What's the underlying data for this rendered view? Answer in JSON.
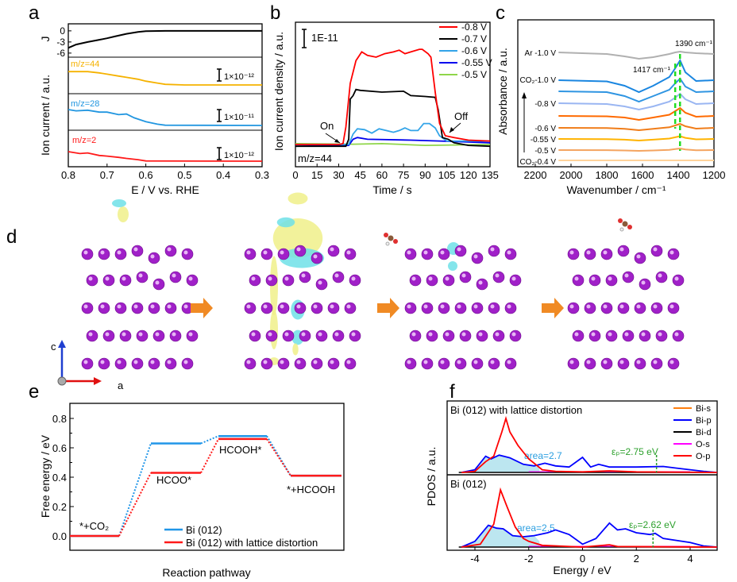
{
  "panel_labels": {
    "a": "a",
    "b": "b",
    "c": "c",
    "d": "d",
    "e": "e",
    "f": "f"
  },
  "structure": {
    "axis_c": "c",
    "axis_a": "a",
    "colors": {
      "atom": "#a020c8",
      "arrow": "#f08a24",
      "positive": "#f0f08a",
      "negative": "#6fe0e8"
    }
  },
  "chart_data": [
    {
      "panel": "a",
      "type": "line",
      "xlabel": "E / V vs. RHE",
      "ylabel": "Ion current / a.u.",
      "xlim": [
        0.8,
        0.3
      ],
      "xticks": [
        "0.8",
        "0.7",
        "0.6",
        "0.5",
        "0.4",
        "0.3"
      ],
      "subplots": [
        {
          "ylabel": "J",
          "yticks": [
            "0",
            "-3",
            "-6"
          ],
          "ylim": [
            -7.1,
            1.9
          ],
          "color": "#000000",
          "x": [
            0.8,
            0.78,
            0.75,
            0.72,
            0.7,
            0.68,
            0.65,
            0.62,
            0.6,
            0.55,
            0.3
          ],
          "y": [
            -4.6,
            -3.7,
            -3.0,
            -2.4,
            -2.0,
            -1.5,
            -0.8,
            -0.3,
            -0.1,
            0,
            0
          ]
        },
        {
          "label": "m/z=44",
          "scale_bar": "1×10⁻¹²",
          "color": "#f5b200",
          "x": [
            0.8,
            0.75,
            0.72,
            0.7,
            0.67,
            0.65,
            0.62,
            0.6,
            0.57,
            0.55,
            0.5,
            0.3
          ],
          "y": [
            1.05,
            1.05,
            0.95,
            0.85,
            0.7,
            0.6,
            0.45,
            0.3,
            0.15,
            0.05,
            0,
            0
          ]
        },
        {
          "label": "m/z=28",
          "scale_bar": "1×10⁻¹¹",
          "color": "#2196e0",
          "x": [
            0.8,
            0.78,
            0.75,
            0.72,
            0.7,
            0.67,
            0.65,
            0.63,
            0.6,
            0.57,
            0.55,
            0.3
          ],
          "y": [
            1.25,
            1.15,
            1.2,
            1.05,
            1.05,
            0.85,
            0.9,
            0.6,
            0.3,
            0.1,
            0.02,
            0
          ]
        },
        {
          "label": "m/z=2",
          "scale_bar": "1×10⁻¹²",
          "color": "#ff1a1a",
          "x": [
            0.8,
            0.77,
            0.75,
            0.72,
            0.7,
            0.67,
            0.65,
            0.62,
            0.6,
            0.3
          ],
          "y": [
            0.75,
            0.6,
            0.65,
            0.45,
            0.4,
            0.3,
            0.22,
            0.12,
            0.02,
            0
          ]
        }
      ]
    },
    {
      "panel": "b",
      "type": "line",
      "xlabel": "Time / s",
      "ylabel": "Ion current density / a.u.",
      "xlim": [
        0,
        135
      ],
      "xticks": [
        "0",
        "15",
        "30",
        "45",
        "60",
        "75",
        "90",
        "105",
        "120",
        "135"
      ],
      "scale_bar": "1E-11",
      "label": "m/z=44",
      "annotations": {
        "on": "On",
        "off": "Off"
      },
      "legend": "top-right",
      "series": [
        {
          "name": "-0.8 V",
          "color": "#ff0000",
          "x": [
            0,
            30,
            33,
            35,
            38,
            42,
            46,
            50,
            56,
            62,
            68,
            72,
            76,
            80,
            86,
            88,
            92,
            94,
            97,
            100,
            104,
            110,
            120,
            135
          ],
          "y": [
            0,
            0,
            0.05,
            1,
            3.5,
            4.8,
            5.3,
            5.1,
            5.0,
            5.2,
            5.3,
            5.4,
            5.2,
            5.3,
            5.45,
            5.45,
            5.2,
            5.0,
            3,
            1.2,
            0.5,
            0.4,
            0.25,
            0.2
          ]
        },
        {
          "name": "-0.7 V",
          "color": "#000000",
          "x": [
            0,
            35,
            37,
            38,
            40,
            42,
            45,
            60,
            75,
            80,
            90,
            97,
            99,
            102,
            106,
            110,
            120,
            135
          ],
          "y": [
            -0.1,
            -0.1,
            0.3,
            2.6,
            2.8,
            3.15,
            3.1,
            3.0,
            3.05,
            2.8,
            2.75,
            2.7,
            2.0,
            0.4,
            0.3,
            0.1,
            -0.05,
            -0.1
          ]
        },
        {
          "name": "-0.6 V",
          "color": "#33a4e8",
          "x": [
            0,
            37,
            40,
            43,
            48,
            53,
            58,
            63,
            68,
            72,
            76,
            80,
            85,
            89,
            93,
            97,
            100,
            105,
            135
          ],
          "y": [
            0,
            0,
            0.6,
            0.9,
            0.85,
            0.65,
            0.9,
            0.8,
            0.7,
            0.8,
            0.95,
            0.8,
            0.8,
            1.2,
            1.2,
            0.95,
            0.5,
            0.2,
            0.2
          ]
        },
        {
          "name": "-0.55 V",
          "color": "#0000ee",
          "x": [
            0,
            37,
            40,
            43,
            50,
            80,
            100,
            135
          ],
          "y": [
            -0.1,
            -0.05,
            0.3,
            0.4,
            0.3,
            0.25,
            0.2,
            0.1
          ]
        },
        {
          "name": "-0.5 V",
          "color": "#8fd64a",
          "x": [
            0,
            40,
            60,
            90,
            135
          ],
          "y": [
            0.05,
            0.02,
            0.05,
            -0.05,
            0
          ]
        }
      ]
    },
    {
      "panel": "c",
      "type": "line",
      "xlabel": "Wavenumber / cm⁻¹",
      "ylabel": "Absorbance / a.u.",
      "xlim": [
        2300,
        1200
      ],
      "xticks": [
        "2200",
        "2000",
        "1800",
        "1600",
        "1400",
        "1200"
      ],
      "annotations": [
        "1390 cm⁻¹",
        "1417 cm⁻¹"
      ],
      "marker_lines": [
        1417,
        1390
      ],
      "marker_color": "#22dd22",
      "x": [
        2070,
        1800,
        1700,
        1620,
        1540,
        1450,
        1417,
        1390,
        1360,
        1300,
        1200
      ],
      "series": [
        {
          "name": "Ar -1.0 V",
          "color": "#b0b0b0",
          "y": [
            14.4,
            14.2,
            13.9,
            13.6,
            13.8,
            14.2,
            14.4,
            14.5,
            14.4,
            14.3,
            14.2
          ]
        },
        {
          "name": "CO₂-1.0 V",
          "color": "#1a86e0",
          "y": [
            10.9,
            10.75,
            10.2,
            9.4,
            10.2,
            11.3,
            12.4,
            13.4,
            11.9,
            10.8,
            10.9
          ]
        },
        {
          "name": "",
          "color": "#2f95e2",
          "y": [
            9.5,
            9.4,
            8.9,
            8.2,
            8.9,
            9.7,
            10.5,
            11.1,
            10.1,
            9.4,
            9.5
          ]
        },
        {
          "name": "-0.8 V",
          "color": "#9ab6f2",
          "y": [
            8.0,
            7.9,
            7.6,
            7.2,
            7.6,
            8.2,
            8.7,
            9.2,
            8.5,
            7.9,
            8.0
          ]
        },
        {
          "name": "",
          "color": "#ff6a00",
          "y": [
            6.4,
            6.35,
            6.2,
            5.9,
            6.2,
            6.55,
            7.0,
            7.4,
            6.8,
            6.3,
            6.4
          ]
        },
        {
          "name": "-0.6 V",
          "color": "#f07d1a",
          "y": [
            4.9,
            4.87,
            4.77,
            4.6,
            4.77,
            4.97,
            5.2,
            5.4,
            5.1,
            4.8,
            4.9
          ]
        },
        {
          "name": "-0.55 V",
          "color": "#ffb300",
          "y": [
            3.5,
            3.48,
            3.41,
            3.3,
            3.41,
            3.55,
            3.71,
            3.85,
            3.64,
            3.45,
            3.5
          ]
        },
        {
          "name": "-0.5 V",
          "color": "#f4a460",
          "y": [
            2.1,
            2.09,
            2.05,
            2.0,
            2.05,
            2.13,
            2.22,
            2.3,
            2.18,
            2.08,
            2.1
          ]
        },
        {
          "name": "CO₂-0.4 V",
          "color": "#ffd39b",
          "y": [
            0.8,
            0.8,
            0.8,
            0.8,
            0.8,
            0.8,
            0.8,
            0.8,
            0.8,
            0.8,
            0.8
          ]
        }
      ]
    },
    {
      "panel": "e",
      "type": "line",
      "xlabel": "Reaction pathway",
      "ylabel": "Free energy / eV",
      "ylim": [
        -0.1,
        0.9
      ],
      "yticks": [
        "0.0",
        "0.2",
        "0.4",
        "0.6",
        "0.8"
      ],
      "categories": [
        "*+CO₂",
        "HCOO*",
        "HCOOH*",
        "*+HCOOH"
      ],
      "legend": "bottom-right",
      "series": [
        {
          "name": "Bi (012)",
          "color": "#2196e8",
          "values": [
            0,
            0.63,
            0.68,
            0.41
          ]
        },
        {
          "name": "Bi (012) with lattice distortion",
          "color": "#ff1a1a",
          "values": [
            0,
            0.43,
            0.66,
            0.41
          ]
        }
      ]
    },
    {
      "panel": "f",
      "type": "area",
      "xlabel": "Energy / eV",
      "ylabel": "PDOS / a.u.",
      "xlim": [
        -5,
        5
      ],
      "xticks": [
        "-4",
        "-2",
        "0",
        "2",
        "4"
      ],
      "legend": "top-right",
      "legend_entries": [
        {
          "name": "Bi-s",
          "color": "#ff7f0e"
        },
        {
          "name": "Bi-p",
          "color": "#0000ff"
        },
        {
          "name": "Bi-d",
          "color": "#000000"
        },
        {
          "name": "O-s",
          "color": "#ff00ff"
        },
        {
          "name": "O-p",
          "color": "#ff0000"
        }
      ],
      "subplots": [
        {
          "title": "Bi (012) with lattice distortion",
          "area_label": "area=2.7",
          "ep_label": "εₚ=2.75 eV",
          "ep": 2.75,
          "O-p": {
            "x": [
              -4.5,
              -4,
              -3.6,
              -3.3,
              -3.0,
              -2.85,
              -2.7,
              -2.4,
              -2,
              -1.5,
              -1,
              0,
              1,
              2,
              5
            ],
            "y": [
              0,
              0.02,
              0.2,
              0.3,
              0.75,
              1.0,
              0.75,
              0.5,
              0.25,
              0.05,
              0.02,
              0.01,
              0.03,
              0.01,
              0
            ]
          },
          "Bi-p": {
            "x": [
              -4.5,
              -4,
              -3.6,
              -3.4,
              -3.1,
              -2.7,
              -2.2,
              -1.8,
              -1.4,
              -1,
              -0.5,
              0,
              0.3,
              0.6,
              1,
              2,
              3,
              3.5,
              4,
              4.5,
              5
            ],
            "y": [
              0,
              0.05,
              0.3,
              0.25,
              0.32,
              0.27,
              0.15,
              0.12,
              0.17,
              0.12,
              0.1,
              0.28,
              0.1,
              0.15,
              0.1,
              0.1,
              0.11,
              0.08,
              0.05,
              0.02,
              0
            ]
          }
        },
        {
          "title": "Bi (012)",
          "area_label": "area=2.5",
          "ep_label": "εₚ=2.62 eV",
          "ep": 2.62,
          "O-p": {
            "x": [
              -4.5,
              -3.8,
              -3.3,
              -3.05,
              -2.8,
              -2.5,
              -2.2,
              -2,
              -1.5,
              0,
              1,
              1.3,
              5
            ],
            "y": [
              0,
              0.05,
              0.4,
              1.0,
              0.7,
              0.35,
              0.15,
              0.1,
              0.03,
              0,
              0.04,
              0.01,
              0
            ]
          },
          "Bi-p": {
            "x": [
              -4.5,
              -4,
              -3.5,
              -3.2,
              -2.95,
              -2.6,
              -2.2,
              -1.8,
              -1.3,
              -1,
              -0.5,
              0,
              0.5,
              1,
              1.3,
              1.6,
              2,
              2.5,
              2.7,
              3,
              4,
              4.5,
              5
            ],
            "y": [
              0,
              0.1,
              0.38,
              0.33,
              0.32,
              0.2,
              0.18,
              0.2,
              0.25,
              0.3,
              0.22,
              0.05,
              0.15,
              0.42,
              0.3,
              0.32,
              0.25,
              0.22,
              0.24,
              0.15,
              0.08,
              0.02,
              0
            ]
          }
        }
      ]
    }
  ]
}
